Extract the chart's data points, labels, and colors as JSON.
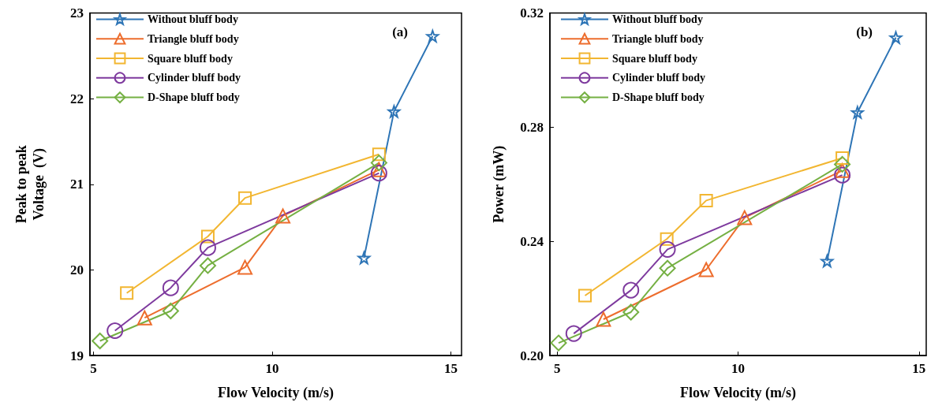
{
  "chart_data": [
    {
      "type": "line",
      "xlabel": "Flow Velocity (m/s)",
      "ylabel": "Peak to peak\nVoltage  (V)",
      "annotations": [
        "(a)"
      ],
      "xlim": [
        4.9,
        15.3
      ],
      "xticks": [
        5,
        10,
        15
      ],
      "ylim": [
        19,
        23
      ],
      "yticks": [
        19,
        20,
        21,
        22,
        23
      ],
      "legend": "top left",
      "grid": false,
      "series": [
        {
          "name": "Without bluff body",
          "color": "#2e75b6",
          "marker": "star",
          "x": [
            12.57,
            13.41,
            14.49
          ],
          "values": [
            20.14,
            21.85,
            22.73
          ]
        },
        {
          "name": "Triangle bluff body",
          "color": "#ed6d2d",
          "marker": "triangle",
          "x": [
            6.43,
            9.24,
            10.3,
            12.99
          ],
          "values": [
            19.44,
            20.03,
            20.63,
            21.17
          ]
        },
        {
          "name": "Square bluff body",
          "color": "#f2b631",
          "marker": "square",
          "x": [
            5.93,
            8.2,
            9.24,
            12.99
          ],
          "values": [
            19.73,
            20.39,
            20.84,
            21.35
          ]
        },
        {
          "name": "Cylinder bluff body",
          "color": "#7e3a9e",
          "marker": "circle",
          "x": [
            5.6,
            7.16,
            8.2,
            12.99
          ],
          "values": [
            19.29,
            19.79,
            20.26,
            21.13
          ]
        },
        {
          "name": "D-Shape bluff body",
          "color": "#75b043",
          "marker": "diamond",
          "x": [
            5.18,
            7.16,
            8.2,
            12.99
          ],
          "values": [
            19.17,
            19.52,
            20.05,
            21.25
          ]
        }
      ]
    },
    {
      "type": "line",
      "xlabel": "Flow Velocity (m/s)",
      "ylabel": "Power (mW)",
      "annotations": [
        "(b)"
      ],
      "xlim": [
        4.8,
        15.2
      ],
      "xticks": [
        5,
        10,
        15
      ],
      "ylim": [
        0.2,
        0.32
      ],
      "yticks": [
        {
          "value": 0.2,
          "label": "0.20"
        },
        {
          "value": 0.24,
          "label": "0.24"
        },
        {
          "value": 0.28,
          "label": "0.28"
        },
        {
          "value": 0.32,
          "label": "0.32"
        }
      ],
      "legend": "top left",
      "grid": false,
      "series": [
        {
          "name": "Without bluff body",
          "color": "#2e75b6",
          "marker": "star",
          "x": [
            12.46,
            13.3,
            14.36
          ],
          "values": [
            0.2331,
            0.2852,
            0.3114
          ]
        },
        {
          "name": "Triangle bluff body",
          "color": "#ed6d2d",
          "marker": "triangle",
          "x": [
            6.28,
            9.12,
            10.18,
            12.88
          ],
          "values": [
            0.2127,
            0.2301,
            0.2483,
            0.2648
          ]
        },
        {
          "name": "Square bluff body",
          "color": "#f2b631",
          "marker": "square",
          "x": [
            5.77,
            8.03,
            9.12,
            12.88
          ],
          "values": [
            0.221,
            0.2408,
            0.2543,
            0.2692
          ]
        },
        {
          "name": "Cylinder bluff body",
          "color": "#7e3a9e",
          "marker": "circle",
          "x": [
            5.46,
            7.04,
            8.05,
            12.88
          ],
          "values": [
            0.2077,
            0.2229,
            0.2372,
            0.2632
          ]
        },
        {
          "name": "D-Shape bluff body",
          "color": "#75b043",
          "marker": "diamond",
          "x": [
            5.04,
            7.04,
            8.05,
            12.88
          ],
          "values": [
            0.2044,
            0.2152,
            0.2306,
            0.267
          ]
        }
      ]
    }
  ]
}
